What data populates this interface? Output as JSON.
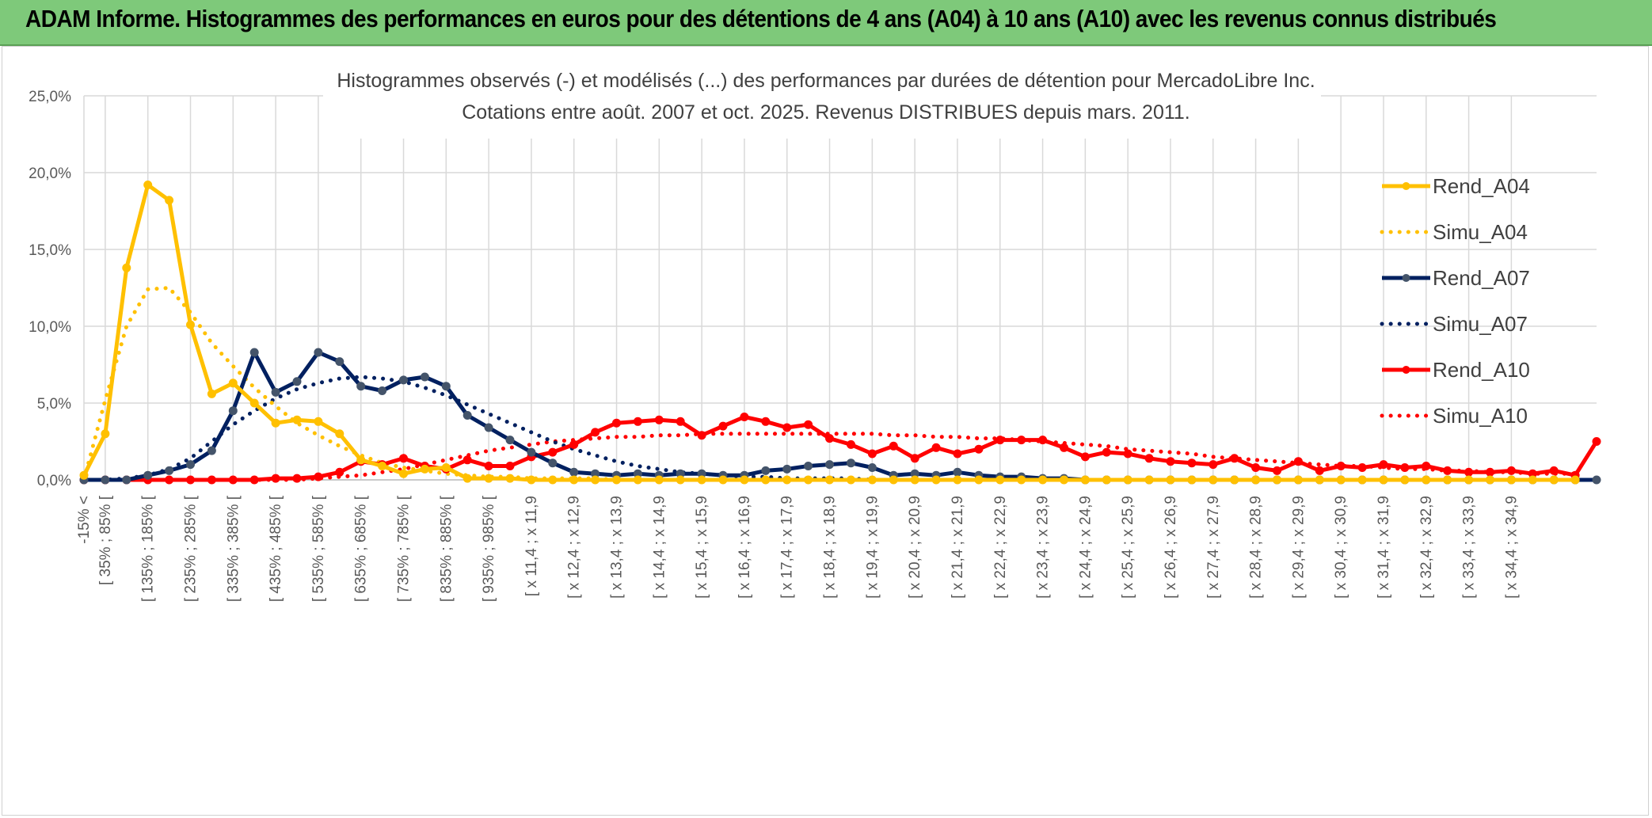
{
  "banner": {
    "title": "ADAM Informe. Histogrammes des performances en euros pour des détentions de 4 ans (A04) à 10 ans (A10) avec les revenus connus distribués"
  },
  "colors": {
    "banner_bg": "#7ec97a",
    "A04": "#ffc000",
    "A07": "#002060",
    "A07_marker": "#44546a",
    "A10": "#ff0000",
    "grid": "#d9d9d9"
  },
  "chart_data": {
    "type": "line",
    "title": "Histogrammes observés (-) et modélisés (...) des performances par durées de détention pour MercadoLibre Inc.",
    "subtitle": "Cotations entre août. 2007 et oct. 2025. Revenus DISTRIBUES depuis mars. 2011.",
    "xlabel": "",
    "ylabel": "",
    "ylim": [
      0,
      25
    ],
    "yticks": [
      "0,0%",
      "5,0%",
      "10,0%",
      "15,0%",
      "20,0%",
      "25,0%"
    ],
    "grid": true,
    "legend_position": "right",
    "x_labels": [
      "-15% <",
      "[ 35% ; 85% [",
      "[ 135% ; 185% [",
      "[ 235% ; 285% [",
      "[ 335% ; 385% [",
      "[ 435% ; 485% [",
      "[ 535% ; 585% [",
      "[ 635% ; 685% [",
      "[ 735% ; 785% [",
      "[ 835% ; 885% [",
      "[ 935% ; 985% [",
      "[ x 11,4 ; x 11,9",
      "[ x 12,4 ; x 12,9",
      "[ x 13,4 ; x 13,9",
      "[ x 14,4 ; x 14,9",
      "[ x 15,4 ; x 15,9",
      "[ x 16,4 ; x 16,9",
      "[ x 17,4 ; x 17,9",
      "[ x 18,4 ; x 18,9",
      "[ x 19,4 ; x 19,9",
      "[ x 20,4 ; x 20,9",
      "[ x 21,4 ; x 21,9",
      "[ x 22,4 ; x 22,9",
      "[ x 23,4 ; x 23,9",
      "[ x 24,4 ; x 24,9",
      "[ x 25,4 ; x 25,9",
      "[ x 26,4 ; x 26,9",
      "[ x 27,4 ; x 27,9",
      "[ x 28,4 ; x 28,9",
      "[ x 29,4 ; x 29,9",
      "[ x 30,4 ; x 30,9",
      "[ x 31,4 ; x 31,9",
      "[ x 32,4 ; x 32,9",
      "[ x 33,4 ; x 33,9",
      "[ x 34,4 ; x 34,9"
    ],
    "series": [
      {
        "name": "Rend_A04",
        "style": "solid",
        "color": "#ffc000",
        "values": [
          0.3,
          3.0,
          13.8,
          19.2,
          18.2,
          10.1,
          5.6,
          6.3,
          5.0,
          3.7,
          3.9,
          3.8,
          3.0,
          1.3,
          0.9,
          0.4,
          0.7,
          0.8,
          0.1,
          0.1,
          0.1,
          0.0,
          0.0,
          0.0,
          0.0,
          0.0,
          0.0,
          0.0,
          0.0,
          0.0,
          0.0,
          0.0,
          0.0,
          0.0,
          0.0,
          0.0,
          0.0,
          0.0,
          0.0,
          0.0,
          0.0,
          0.0,
          0.0,
          0.0,
          0.0,
          0.0
        ]
      },
      {
        "name": "Simu_A04",
        "style": "dotted",
        "color": "#ffc000",
        "values": [
          0.0,
          5.2,
          10.0,
          12.4,
          12.5,
          10.9,
          8.9,
          7.4,
          6.0,
          4.8,
          3.7,
          2.9,
          2.2,
          1.6,
          1.1,
          0.8,
          0.6,
          0.4,
          0.3,
          0.2,
          0.2,
          0.1,
          0.1,
          0.1,
          0.1,
          0.0,
          0.0,
          0.0,
          0.0,
          0.0,
          0.0,
          0.0,
          0.0,
          0.0,
          0.0,
          0.0,
          0.0,
          0.0,
          0.0,
          0.0,
          0.0,
          0.0,
          0.0,
          0.0,
          0.0,
          0.0
        ]
      },
      {
        "name": "Rend_A07",
        "style": "solid",
        "color": "#002060",
        "values": [
          0.0,
          0.0,
          0.0,
          0.3,
          0.6,
          1.0,
          1.9,
          4.5,
          8.3,
          5.7,
          6.4,
          8.3,
          7.7,
          6.1,
          5.8,
          6.5,
          6.7,
          6.1,
          4.2,
          3.4,
          2.6,
          1.8,
          1.1,
          0.5,
          0.4,
          0.3,
          0.4,
          0.3,
          0.4,
          0.4,
          0.3,
          0.3,
          0.6,
          0.7,
          0.9,
          1.0,
          1.1,
          0.8,
          0.3,
          0.4,
          0.3,
          0.5,
          0.3,
          0.2,
          0.2,
          0.1
        ]
      },
      {
        "name": "Simu_A07",
        "style": "dotted",
        "color": "#002060",
        "values": [
          0.0,
          0.0,
          0.1,
          0.3,
          0.7,
          1.4,
          2.5,
          3.6,
          4.5,
          5.3,
          5.9,
          6.3,
          6.6,
          6.7,
          6.6,
          6.4,
          6.0,
          5.5,
          4.9,
          4.3,
          3.7,
          3.1,
          2.5,
          2.0,
          1.6,
          1.2,
          0.9,
          0.7,
          0.5,
          0.4,
          0.3,
          0.2,
          0.2,
          0.1,
          0.1,
          0.1,
          0.1,
          0.0,
          0.0,
          0.0,
          0.0,
          0.0,
          0.0,
          0.0,
          0.0,
          0.0
        ]
      },
      {
        "name": "Rend_A10",
        "style": "solid",
        "color": "#ff0000",
        "values": [
          0.0,
          0.0,
          0.0,
          0.0,
          0.0,
          0.0,
          0.0,
          0.0,
          0.0,
          0.1,
          0.1,
          0.2,
          0.5,
          1.2,
          1.0,
          1.4,
          0.9,
          0.7,
          1.3,
          0.9,
          0.9,
          1.5,
          1.8,
          2.3,
          3.1,
          3.7,
          3.8,
          3.9,
          3.8,
          2.9,
          3.5,
          4.1,
          3.8,
          3.4,
          3.6,
          2.7,
          2.3,
          1.7,
          2.2,
          1.4,
          2.1,
          1.7,
          2.0,
          2.6,
          2.6,
          2.6
        ]
      },
      {
        "name": "Simu_A10",
        "style": "dotted",
        "color": "#ff0000",
        "values": [
          0.0,
          0.0,
          0.0,
          0.0,
          0.0,
          0.0,
          0.0,
          0.0,
          0.0,
          0.0,
          0.0,
          0.1,
          0.2,
          0.3,
          0.5,
          0.7,
          1.0,
          1.3,
          1.6,
          1.9,
          2.1,
          2.3,
          2.5,
          2.6,
          2.7,
          2.8,
          2.8,
          2.9,
          2.9,
          3.0,
          3.0,
          3.0,
          3.0,
          3.0,
          3.0,
          3.0,
          3.0,
          3.0,
          2.9,
          2.9,
          2.8,
          2.8,
          2.7,
          2.7,
          2.6,
          2.5
        ]
      }
    ],
    "tail_series_note": "",
    "tail": {
      "Rend_A04": [
        0.0,
        0.0,
        0.0,
        0.0,
        0.0,
        0.0,
        0.0,
        0.0,
        0.0,
        0.0,
        0.0,
        0.0,
        0.0,
        0.0,
        0.0,
        0.0,
        0.0,
        0.0,
        0.0,
        0.0,
        0.0,
        0.0,
        0.0,
        0.0,
        0.0
      ],
      "Simu_A04": [
        0.0,
        0.0,
        0.0,
        0.0,
        0.0,
        0.0,
        0.0,
        0.0,
        0.0,
        0.0,
        0.0,
        0.0,
        0.0,
        0.0,
        0.0,
        0.0,
        0.0,
        0.0,
        0.0,
        0.0,
        0.0,
        0.0,
        0.0,
        0.0,
        0.0
      ],
      "Rend_A07": [
        0.1,
        0.0,
        0.0,
        0.0,
        0.0,
        0.0,
        0.0,
        0.0,
        0.0,
        0.0,
        0.0,
        0.0,
        0.0,
        0.0,
        0.0,
        0.0,
        0.0,
        0.0,
        0.0,
        0.0,
        0.0,
        0.0,
        0.0,
        0.0,
        0.0
      ],
      "Simu_A07": [
        0.0,
        0.0,
        0.0,
        0.0,
        0.0,
        0.0,
        0.0,
        0.0,
        0.0,
        0.0,
        0.0,
        0.0,
        0.0,
        0.0,
        0.0,
        0.0,
        0.0,
        0.0,
        0.0,
        0.0,
        0.0,
        0.0,
        0.0,
        0.0,
        0.0
      ],
      "Rend_A10": [
        2.1,
        1.5,
        1.8,
        1.7,
        1.4,
        1.2,
        1.1,
        1.0,
        1.4,
        0.8,
        0.6,
        1.2,
        0.6,
        0.9,
        0.8,
        1.0,
        0.8,
        0.9,
        0.6,
        0.5,
        0.5,
        0.6,
        0.4,
        0.6,
        0.3
      ],
      "Simu_A10": [
        2.4,
        2.3,
        2.2,
        2.0,
        1.9,
        1.8,
        1.7,
        1.5,
        1.4,
        1.3,
        1.2,
        1.1,
        1.0,
        0.9,
        0.9,
        0.8,
        0.7,
        0.7,
        0.6,
        0.6,
        0.5,
        0.5,
        0.4,
        0.4,
        0.4
      ]
    },
    "final_point": {
      "Rend_A10": 2.5,
      "Rend_A07": 0.0
    }
  }
}
